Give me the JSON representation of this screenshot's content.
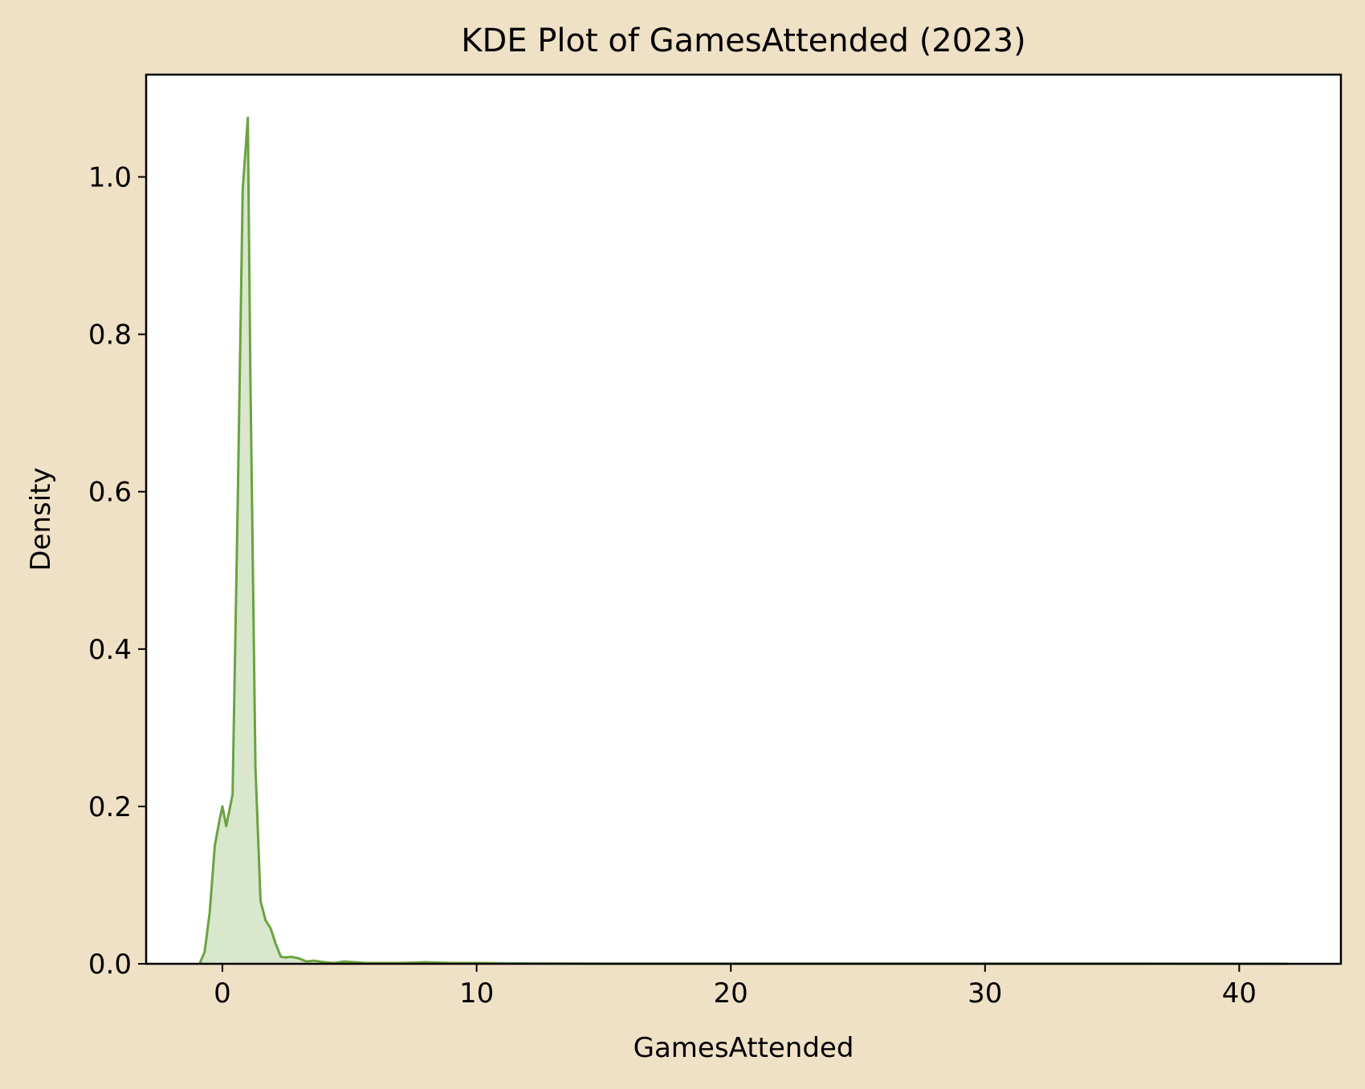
{
  "chart_data": {
    "type": "area",
    "title": "KDE Plot of GamesAttended (2023)",
    "xlabel": "GamesAttended",
    "ylabel": "Density",
    "xlim": [
      -3,
      44
    ],
    "ylim": [
      0,
      1.13
    ],
    "x_ticks": [
      0,
      10,
      20,
      30,
      40
    ],
    "x_tick_labels": [
      "0",
      "10",
      "20",
      "30",
      "40"
    ],
    "y_ticks": [
      0.0,
      0.2,
      0.4,
      0.6,
      0.8,
      1.0
    ],
    "y_tick_labels": [
      "0.0",
      "0.2",
      "0.4",
      "0.6",
      "0.8",
      "1.0"
    ],
    "grid": false,
    "legend": "none",
    "series": [
      {
        "color": "#6aa341",
        "fill_color": "#d9e7cc",
        "x": [
          -0.9,
          -0.7,
          -0.5,
          -0.3,
          -0.1,
          0.0,
          0.15,
          0.4,
          0.6,
          0.8,
          1.0,
          1.1,
          1.3,
          1.5,
          1.7,
          1.9,
          2.1,
          2.3,
          2.5,
          2.7,
          3.0,
          3.3,
          3.6,
          4.0,
          4.4,
          4.8,
          5.2,
          5.6,
          6.0,
          7.0,
          8.0,
          9.0,
          10.0,
          12.0,
          15.0,
          20.0,
          25.0,
          30.0,
          35.0,
          40.0,
          41.9
        ],
        "y": [
          0.0,
          0.015,
          0.065,
          0.15,
          0.185,
          0.2,
          0.175,
          0.215,
          0.58,
          0.985,
          1.075,
          0.75,
          0.25,
          0.08,
          0.055,
          0.045,
          0.025,
          0.009,
          0.008,
          0.009,
          0.007,
          0.003,
          0.004,
          0.002,
          0.001,
          0.003,
          0.002,
          0.001,
          0.001,
          0.001,
          0.002,
          0.001,
          0.001,
          0.0005,
          0.0003,
          0.0002,
          0.0002,
          0.0002,
          0.0002,
          0.0001,
          0.0
        ]
      }
    ]
  }
}
